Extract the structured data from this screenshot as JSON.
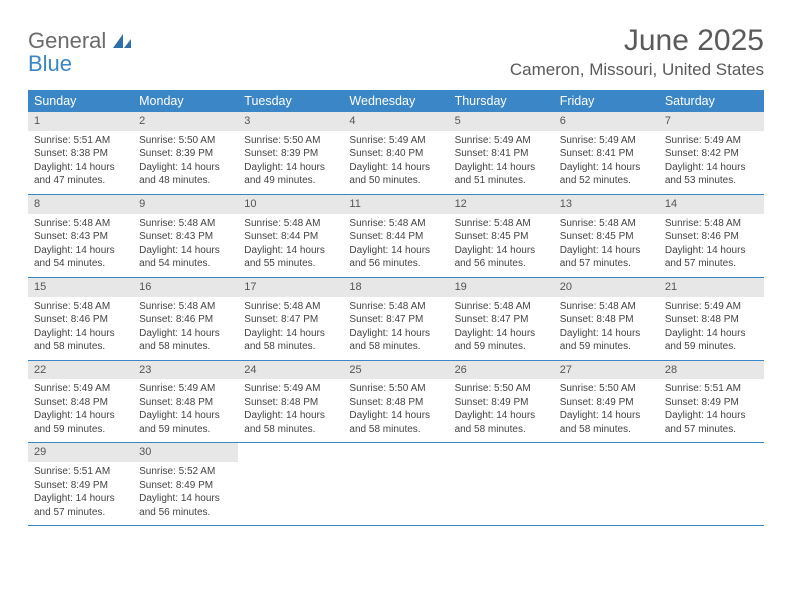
{
  "logo": {
    "text_top": "General",
    "text_bottom": "Blue",
    "icon_color": "#2f6fa8",
    "top_color": "#6b6b6b",
    "bottom_color": "#3b86c6"
  },
  "title": {
    "month": "June 2025",
    "location": "Cameron, Missouri, United States",
    "title_color": "#5a5a5a",
    "title_fontsize": 30,
    "location_fontsize": 17
  },
  "colors": {
    "header_bg": "#3b86c6",
    "header_text": "#ffffff",
    "daynum_bg": "#e7e7e7",
    "border": "#3b86c6",
    "body_text": "#444444",
    "page_bg": "#ffffff"
  },
  "day_names": [
    "Sunday",
    "Monday",
    "Tuesday",
    "Wednesday",
    "Thursday",
    "Friday",
    "Saturday"
  ],
  "days": [
    {
      "n": "1",
      "sunrise": "5:51 AM",
      "sunset": "8:38 PM",
      "daylight": "14 hours and 47 minutes."
    },
    {
      "n": "2",
      "sunrise": "5:50 AM",
      "sunset": "8:39 PM",
      "daylight": "14 hours and 48 minutes."
    },
    {
      "n": "3",
      "sunrise": "5:50 AM",
      "sunset": "8:39 PM",
      "daylight": "14 hours and 49 minutes."
    },
    {
      "n": "4",
      "sunrise": "5:49 AM",
      "sunset": "8:40 PM",
      "daylight": "14 hours and 50 minutes."
    },
    {
      "n": "5",
      "sunrise": "5:49 AM",
      "sunset": "8:41 PM",
      "daylight": "14 hours and 51 minutes."
    },
    {
      "n": "6",
      "sunrise": "5:49 AM",
      "sunset": "8:41 PM",
      "daylight": "14 hours and 52 minutes."
    },
    {
      "n": "7",
      "sunrise": "5:49 AM",
      "sunset": "8:42 PM",
      "daylight": "14 hours and 53 minutes."
    },
    {
      "n": "8",
      "sunrise": "5:48 AM",
      "sunset": "8:43 PM",
      "daylight": "14 hours and 54 minutes."
    },
    {
      "n": "9",
      "sunrise": "5:48 AM",
      "sunset": "8:43 PM",
      "daylight": "14 hours and 54 minutes."
    },
    {
      "n": "10",
      "sunrise": "5:48 AM",
      "sunset": "8:44 PM",
      "daylight": "14 hours and 55 minutes."
    },
    {
      "n": "11",
      "sunrise": "5:48 AM",
      "sunset": "8:44 PM",
      "daylight": "14 hours and 56 minutes."
    },
    {
      "n": "12",
      "sunrise": "5:48 AM",
      "sunset": "8:45 PM",
      "daylight": "14 hours and 56 minutes."
    },
    {
      "n": "13",
      "sunrise": "5:48 AM",
      "sunset": "8:45 PM",
      "daylight": "14 hours and 57 minutes."
    },
    {
      "n": "14",
      "sunrise": "5:48 AM",
      "sunset": "8:46 PM",
      "daylight": "14 hours and 57 minutes."
    },
    {
      "n": "15",
      "sunrise": "5:48 AM",
      "sunset": "8:46 PM",
      "daylight": "14 hours and 58 minutes."
    },
    {
      "n": "16",
      "sunrise": "5:48 AM",
      "sunset": "8:46 PM",
      "daylight": "14 hours and 58 minutes."
    },
    {
      "n": "17",
      "sunrise": "5:48 AM",
      "sunset": "8:47 PM",
      "daylight": "14 hours and 58 minutes."
    },
    {
      "n": "18",
      "sunrise": "5:48 AM",
      "sunset": "8:47 PM",
      "daylight": "14 hours and 58 minutes."
    },
    {
      "n": "19",
      "sunrise": "5:48 AM",
      "sunset": "8:47 PM",
      "daylight": "14 hours and 59 minutes."
    },
    {
      "n": "20",
      "sunrise": "5:48 AM",
      "sunset": "8:48 PM",
      "daylight": "14 hours and 59 minutes."
    },
    {
      "n": "21",
      "sunrise": "5:49 AM",
      "sunset": "8:48 PM",
      "daylight": "14 hours and 59 minutes."
    },
    {
      "n": "22",
      "sunrise": "5:49 AM",
      "sunset": "8:48 PM",
      "daylight": "14 hours and 59 minutes."
    },
    {
      "n": "23",
      "sunrise": "5:49 AM",
      "sunset": "8:48 PM",
      "daylight": "14 hours and 59 minutes."
    },
    {
      "n": "24",
      "sunrise": "5:49 AM",
      "sunset": "8:48 PM",
      "daylight": "14 hours and 58 minutes."
    },
    {
      "n": "25",
      "sunrise": "5:50 AM",
      "sunset": "8:48 PM",
      "daylight": "14 hours and 58 minutes."
    },
    {
      "n": "26",
      "sunrise": "5:50 AM",
      "sunset": "8:49 PM",
      "daylight": "14 hours and 58 minutes."
    },
    {
      "n": "27",
      "sunrise": "5:50 AM",
      "sunset": "8:49 PM",
      "daylight": "14 hours and 58 minutes."
    },
    {
      "n": "28",
      "sunrise": "5:51 AM",
      "sunset": "8:49 PM",
      "daylight": "14 hours and 57 minutes."
    },
    {
      "n": "29",
      "sunrise": "5:51 AM",
      "sunset": "8:49 PM",
      "daylight": "14 hours and 57 minutes."
    },
    {
      "n": "30",
      "sunrise": "5:52 AM",
      "sunset": "8:49 PM",
      "daylight": "14 hours and 56 minutes."
    }
  ],
  "labels": {
    "sunrise_prefix": "Sunrise: ",
    "sunset_prefix": "Sunset: ",
    "daylight_prefix": "Daylight: "
  },
  "layout": {
    "first_day_column": 0,
    "columns": 7
  }
}
